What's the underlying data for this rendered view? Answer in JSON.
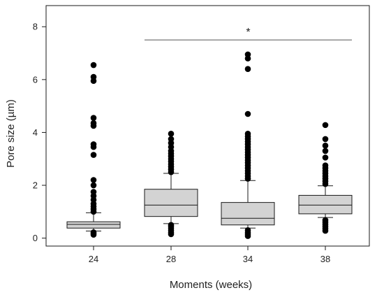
{
  "chart_data": {
    "type": "box",
    "xlabel": "Moments (weeks)",
    "ylabel": "Pore size (µm)",
    "ylim": [
      -0.3,
      8.8
    ],
    "yticks": [
      "0",
      "2",
      "4",
      "6",
      "8"
    ],
    "ytick_values": [
      0,
      2,
      4,
      6,
      8
    ],
    "categories": [
      "24",
      "28",
      "34",
      "38"
    ],
    "boxes": [
      {
        "category": "24",
        "whisker_low": 0.27,
        "q1": 0.38,
        "median": 0.52,
        "q3": 0.62,
        "whisker_high": 0.96,
        "outliers": [
          0.13,
          0.18,
          0.22,
          1.0,
          1.1,
          1.2,
          1.3,
          1.45,
          1.6,
          1.75,
          2.0,
          2.2,
          3.15,
          3.45,
          3.55,
          4.25,
          4.35,
          4.55,
          5.95,
          6.1,
          6.55
        ]
      },
      {
        "category": "28",
        "whisker_low": 0.55,
        "q1": 0.82,
        "median": 1.25,
        "q3": 1.85,
        "whisker_high": 2.45,
        "outliers": [
          0.15,
          0.22,
          0.3,
          0.38,
          0.45,
          0.5,
          2.5,
          2.6,
          2.7,
          2.8,
          2.9,
          3.0,
          3.1,
          3.2,
          3.3,
          3.45,
          3.6,
          3.75,
          3.95
        ]
      },
      {
        "category": "34",
        "whisker_low": 0.38,
        "q1": 0.5,
        "median": 0.75,
        "q3": 1.35,
        "whisker_high": 2.18,
        "outliers": [
          0.08,
          0.15,
          0.22,
          0.3,
          2.25,
          2.35,
          2.45,
          2.55,
          2.65,
          2.75,
          2.85,
          2.95,
          3.05,
          3.15,
          3.25,
          3.35,
          3.45,
          3.55,
          3.65,
          3.75,
          3.85,
          3.95,
          4.7,
          6.4,
          6.8,
          6.95
        ]
      },
      {
        "category": "38",
        "whisker_low": 0.78,
        "q1": 0.92,
        "median": 1.25,
        "q3": 1.62,
        "whisker_high": 1.98,
        "outliers": [
          0.28,
          0.36,
          0.44,
          0.52,
          0.6,
          0.68,
          2.05,
          2.15,
          2.25,
          2.35,
          2.45,
          2.55,
          2.65,
          2.75,
          3.05,
          3.3,
          3.5,
          3.75,
          4.28
        ]
      }
    ],
    "annotation": {
      "label": "*",
      "from_category": "28",
      "to_category": "38",
      "y": 7.5
    },
    "colors": {
      "box_fill": "#d3d3d3",
      "box_stroke": "#1a1a1a",
      "outlier": "#000000",
      "line": "#1a1a1a",
      "annotation_line": "#555555"
    },
    "grid": false,
    "legend": "none"
  }
}
